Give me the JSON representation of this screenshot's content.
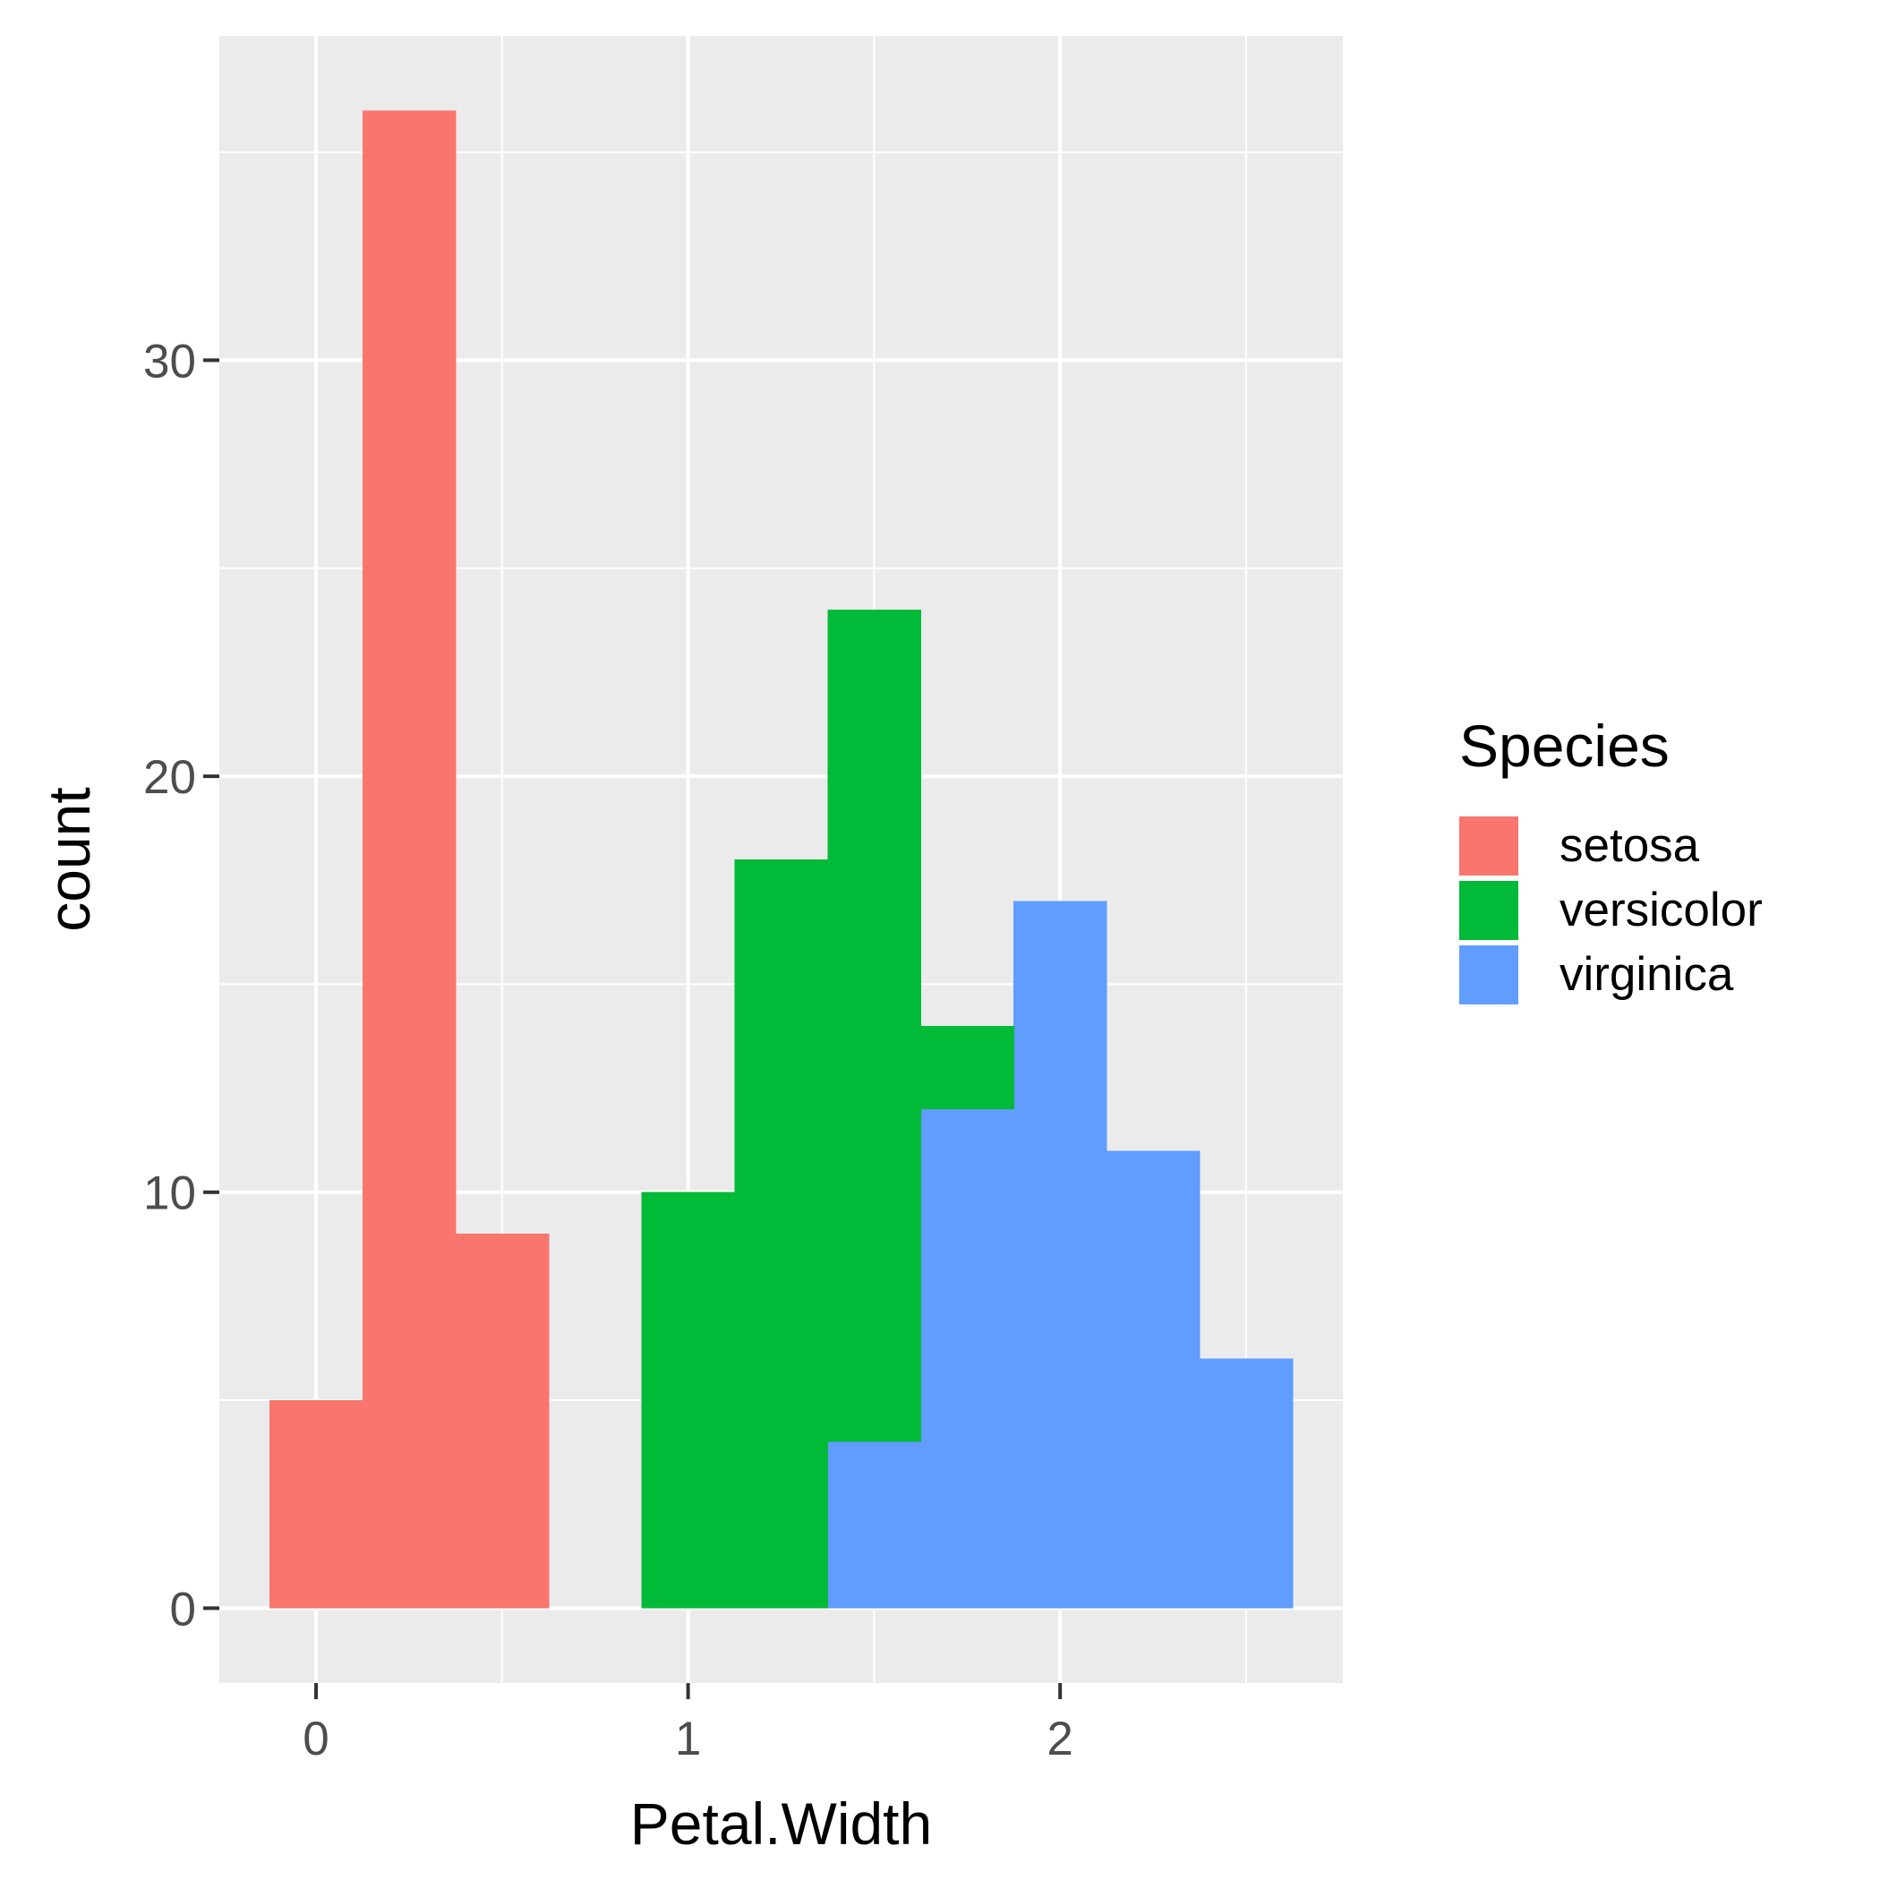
{
  "chart_data": {
    "type": "bar",
    "subtype": "stacked-histogram",
    "title": "",
    "xlabel": "Petal.Width",
    "ylabel": "count",
    "xlim": [
      -0.26,
      2.76
    ],
    "ylim": [
      -1.8,
      37.8
    ],
    "x_ticks": [
      0,
      1,
      2
    ],
    "x_tick_labels": [
      "0",
      "1",
      "2"
    ],
    "y_ticks": [
      0,
      10,
      20,
      30
    ],
    "y_tick_labels": [
      "0",
      "10",
      "20",
      "30"
    ],
    "x_minor_gridlines": [
      0.5,
      1.5,
      2.5
    ],
    "y_minor_gridlines": [
      5,
      15,
      25,
      35
    ],
    "grid": true,
    "panel_background": "#EBEBEB",
    "grid_color": "#FFFFFF",
    "bin_width": 0.25,
    "bins_x_start": [
      -0.125,
      0.125,
      0.375,
      0.625,
      0.875,
      1.125,
      1.375,
      1.625,
      1.875,
      2.125,
      2.375
    ],
    "series": [
      {
        "name": "virginica",
        "color": "#619CFF",
        "values": [
          0,
          0,
          0,
          0,
          0,
          0,
          4,
          12,
          17,
          11,
          6
        ]
      },
      {
        "name": "versicolor",
        "color": "#00BA38",
        "values": [
          0,
          0,
          0,
          0,
          10,
          18,
          20,
          2,
          0,
          0,
          0
        ]
      },
      {
        "name": "setosa",
        "color": "#F8766D",
        "values": [
          5,
          36,
          9,
          0,
          0,
          0,
          0,
          0,
          0,
          0,
          0
        ]
      }
    ],
    "legend": {
      "title": "Species",
      "position": "right",
      "entries": [
        {
          "label": "setosa",
          "color": "#F8766D"
        },
        {
          "label": "versicolor",
          "color": "#00BA38"
        },
        {
          "label": "virginica",
          "color": "#619CFF"
        }
      ]
    }
  }
}
